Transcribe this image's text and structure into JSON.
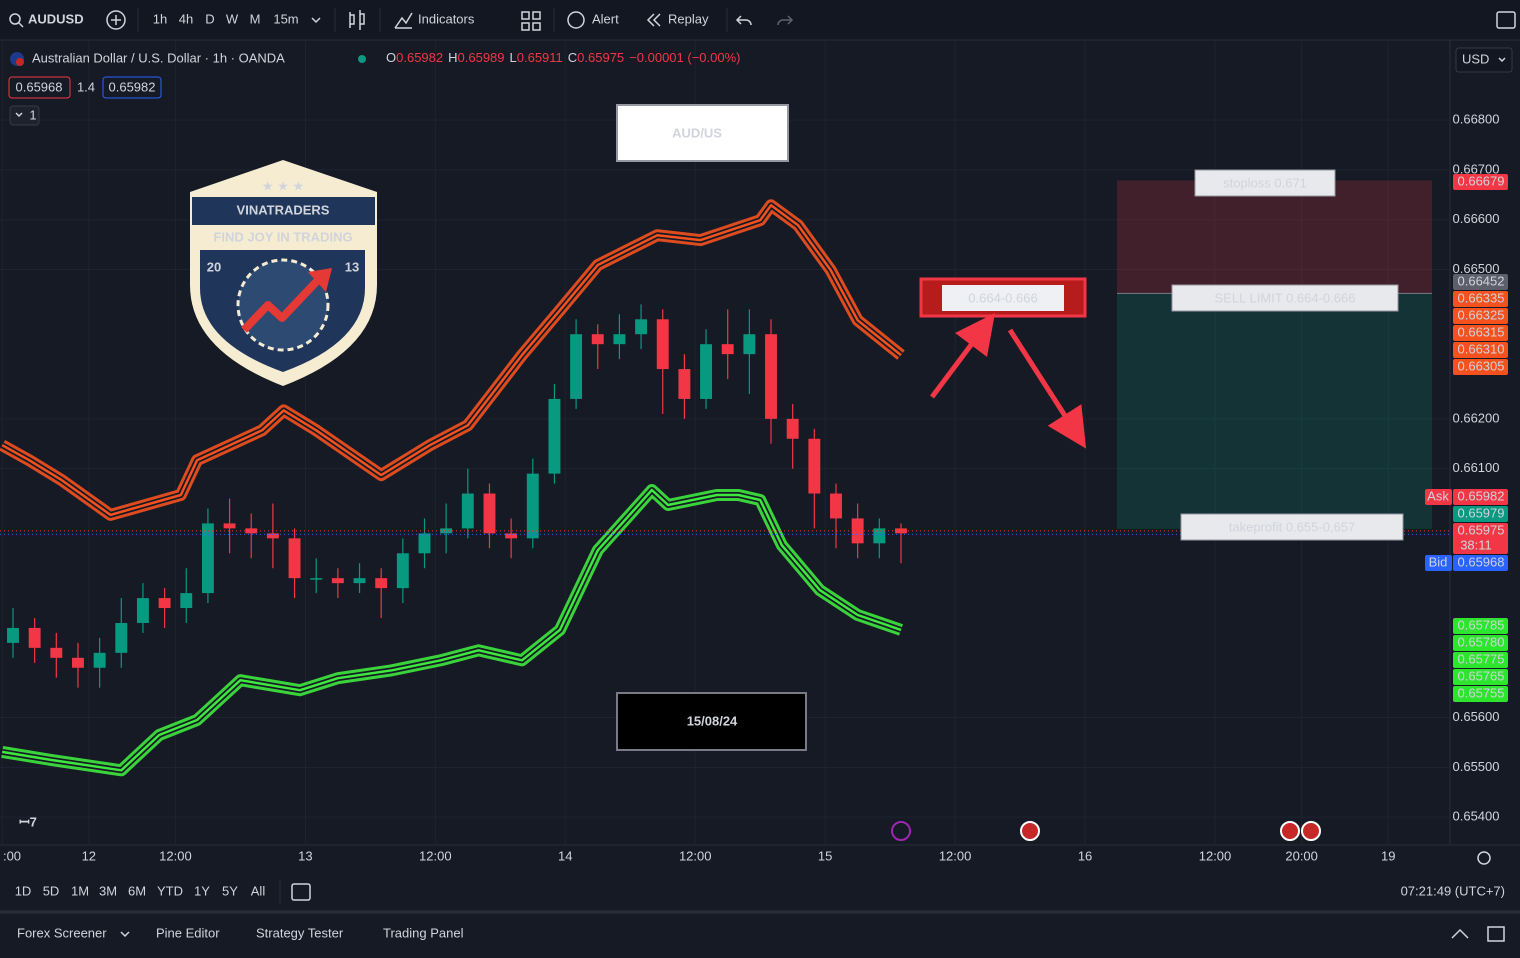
{
  "toolbar": {
    "symbol": "AUDUSD",
    "intervals": [
      "1h",
      "4h",
      "D",
      "W",
      "M",
      "15m"
    ],
    "buttons": [
      "Indicators",
      "Alert",
      "Replay"
    ]
  },
  "legend": {
    "title": "Australian Dollar / U.S. Dollar · 1h · OANDA",
    "ohlc": [
      {
        "key": "O",
        "value": "0.65982"
      },
      {
        "key": "H",
        "value": "0.65989"
      },
      {
        "key": "L",
        "value": "0.65911"
      },
      {
        "key": "C",
        "value": "0.65975"
      }
    ],
    "change": "−0.00001 (−0.00%)",
    "bid": "0.65968",
    "spread": "1.4",
    "ask": "0.65982",
    "collapse": "1"
  },
  "currency": "USD",
  "chart_data": {
    "type": "candlestick",
    "up_color": "#089981",
    "down_color": "#f23645",
    "grid": true,
    "x": [
      -7,
      -5,
      -3,
      -1,
      1,
      3,
      5,
      7,
      9,
      11,
      13,
      15,
      17,
      19,
      21,
      23,
      25,
      27,
      29,
      31,
      33,
      35,
      37,
      39,
      41,
      43,
      45,
      47,
      49,
      51,
      53,
      55,
      57,
      59,
      61,
      63,
      65,
      67,
      69,
      71,
      73,
      75
    ],
    "open": [
      0.6575,
      0.6578,
      0.6574,
      0.6572,
      0.657,
      0.6573,
      0.6579,
      0.6584,
      0.6582,
      0.6585,
      0.6599,
      0.6598,
      0.6597,
      0.6596,
      0.6588,
      0.6588,
      0.6587,
      0.6588,
      0.6586,
      0.6593,
      0.6597,
      0.6598,
      0.6605,
      0.6597,
      0.6596,
      0.6609,
      0.6624,
      0.6637,
      0.6635,
      0.6637,
      0.664,
      0.663,
      0.6624,
      0.6635,
      0.6633,
      0.6637,
      0.662,
      0.6616,
      0.6605,
      0.66,
      0.6595,
      0.6598
    ],
    "high": [
      0.6582,
      0.658,
      0.6577,
      0.6575,
      0.6576,
      0.6584,
      0.6587,
      0.6586,
      0.659,
      0.6602,
      0.6604,
      0.6601,
      0.6603,
      0.6598,
      0.6592,
      0.659,
      0.6591,
      0.659,
      0.6596,
      0.66,
      0.6603,
      0.661,
      0.6607,
      0.66,
      0.6612,
      0.6627,
      0.664,
      0.6639,
      0.6641,
      0.6643,
      0.6642,
      0.6633,
      0.6638,
      0.6642,
      0.6642,
      0.664,
      0.6623,
      0.6618,
      0.6607,
      0.6603,
      0.66,
      0.6599
    ],
    "low": [
      0.6572,
      0.6571,
      0.6568,
      0.6566,
      0.6566,
      0.657,
      0.6577,
      0.6578,
      0.6579,
      0.6583,
      0.6593,
      0.6592,
      0.659,
      0.6584,
      0.6585,
      0.6584,
      0.6585,
      0.658,
      0.6583,
      0.659,
      0.6593,
      0.6596,
      0.6594,
      0.6592,
      0.6594,
      0.6607,
      0.6622,
      0.663,
      0.6632,
      0.6634,
      0.6621,
      0.662,
      0.6622,
      0.6628,
      0.6625,
      0.6615,
      0.661,
      0.6598,
      0.6594,
      0.6592,
      0.6592,
      0.6591
    ],
    "close": [
      0.6578,
      0.6574,
      0.6572,
      0.657,
      0.6573,
      0.6579,
      0.6584,
      0.6582,
      0.6585,
      0.6599,
      0.6598,
      0.6597,
      0.6596,
      0.6588,
      0.6588,
      0.6587,
      0.6588,
      0.6586,
      0.6593,
      0.6597,
      0.6598,
      0.6605,
      0.6597,
      0.6596,
      0.6609,
      0.6624,
      0.6637,
      0.6635,
      0.6637,
      0.664,
      0.663,
      0.6624,
      0.6635,
      0.6633,
      0.6637,
      0.662,
      0.6616,
      0.6605,
      0.66,
      0.6595,
      0.6598,
      0.6597
    ],
    "series": [
      {
        "color": "#f4511e",
        "x": [
          -8,
          -5.5,
          -2.5,
          2,
          8.5,
          10,
          16,
          18,
          21,
          27,
          31.5,
          35,
          40,
          43.5,
          47,
          52.5,
          56.5,
          62,
          63,
          65.5,
          68.5,
          71,
          75
        ],
        "values": [
          0.66147,
          0.66117,
          0.66077,
          0.66007,
          0.66047,
          0.66117,
          0.66177,
          0.66217,
          0.66177,
          0.66087,
          0.66147,
          0.66187,
          0.66328,
          0.66418,
          0.66509,
          0.66569,
          0.66559,
          0.66599,
          0.66629,
          0.66589,
          0.66499,
          0.66398,
          0.66328
        ]
      },
      {
        "color": "#3ee83e",
        "x": [
          -8,
          -3.5,
          3,
          6.5,
          10,
          14,
          19.5,
          23,
          28,
          32.5,
          36,
          40,
          43.5,
          47,
          52,
          53.5,
          58,
          60,
          62,
          64,
          67.5,
          71,
          75
        ],
        "values": [
          0.65531,
          0.65515,
          0.65494,
          0.65565,
          0.65595,
          0.65675,
          0.65655,
          0.65679,
          0.65695,
          0.65715,
          0.65735,
          0.65715,
          0.65776,
          0.65936,
          0.66057,
          0.66027,
          0.66047,
          0.66047,
          0.66037,
          0.65946,
          0.65856,
          0.65806,
          0.65776
        ]
      }
    ],
    "xlim": [
      -8.2,
      125.7
    ],
    "xticks": [
      {
        "value": -8,
        "label": ":00"
      },
      {
        "value": 0,
        "label": "12"
      },
      {
        "value": 8,
        "label": "12:00"
      },
      {
        "value": 20,
        "label": "13"
      },
      {
        "value": 32,
        "label": "12:00"
      },
      {
        "value": 44,
        "label": "14"
      },
      {
        "value": 56,
        "label": "12:00"
      },
      {
        "value": 68,
        "label": "15"
      },
      {
        "value": 80,
        "label": "12:00"
      },
      {
        "value": 92,
        "label": "16"
      },
      {
        "value": 104,
        "label": "12:00"
      },
      {
        "value": 112,
        "label": "20:00"
      },
      {
        "value": 120,
        "label": "19"
      }
    ],
    "ylim": [
      0.65344,
      0.66961
    ],
    "yticks": [
      {
        "value": 0.668,
        "label": "0.66800"
      },
      {
        "value": 0.667,
        "label": "0.66700"
      },
      {
        "value": 0.666,
        "label": "0.66600"
      },
      {
        "value": 0.665,
        "label": "0.66500"
      },
      {
        "value": 0.662,
        "label": "0.66200"
      },
      {
        "value": 0.661,
        "label": "0.66100"
      },
      {
        "value": 0.656,
        "label": "0.65600"
      },
      {
        "value": 0.655,
        "label": "0.65500"
      },
      {
        "value": 0.654,
        "label": "0.65400"
      }
    ],
    "price_tags": [
      {
        "value": 0.66679,
        "label": "0.66679",
        "color": "#f23645"
      },
      {
        "value": 0.66452,
        "label": "0.66452",
        "color": "#5d606b"
      },
      {
        "value": 0.66335,
        "label": "0.66335",
        "color": "#f4511e"
      },
      {
        "value": 0.66325,
        "label": "0.66325",
        "color": "#f4511e"
      },
      {
        "value": 0.66315,
        "label": "0.66315",
        "color": "#f4511e"
      },
      {
        "value": 0.6631,
        "label": "0.66310",
        "color": "#f4511e"
      },
      {
        "value": 0.66305,
        "label": "0.66305",
        "color": "#f4511e"
      },
      {
        "value": 0.65982,
        "label": "0.65982",
        "color": "#f23645",
        "prefix": "Ask"
      },
      {
        "value": 0.65979,
        "label": "0.65979",
        "color": "#089981"
      },
      {
        "value": 0.65975,
        "label": "0.65975",
        "color": "#f23645",
        "countdown": "38:11"
      },
      {
        "value": 0.65968,
        "label": "0.65968",
        "color": "#2962ff",
        "prefix": "Bid"
      },
      {
        "value": 0.65785,
        "label": "0.65785",
        "color": "#2ee52e"
      },
      {
        "value": 0.6578,
        "label": "0.65780",
        "color": "#2ee52e"
      },
      {
        "value": 0.65775,
        "label": "0.65775",
        "color": "#2ee52e"
      },
      {
        "value": 0.65765,
        "label": "0.65765",
        "color": "#2ee52e"
      },
      {
        "value": 0.65755,
        "label": "0.65755",
        "color": "#2ee52e"
      }
    ]
  },
  "annotations": {
    "pair": "AUD/US",
    "date": "15/08/24",
    "zone": "0.664-0.666",
    "stoploss": "stoploss 0.671",
    "entry": "SELL LIMIT 0.664-0.666",
    "takeprofit": "takeprofit 0.655-0,657"
  },
  "logo": {
    "name": "VINATRADERS",
    "slogan": "FIND JOY IN TRADING",
    "year_left": "20",
    "year_right": "13"
  },
  "ranges": [
    "1D",
    "5D",
    "1M",
    "3M",
    "6M",
    "YTD",
    "1Y",
    "5Y",
    "All"
  ],
  "clock": "07:21:49 (UTC+7)",
  "footer_tabs": [
    "Forex Screener",
    "Pine Editor",
    "Strategy Tester",
    "Trading Panel"
  ]
}
